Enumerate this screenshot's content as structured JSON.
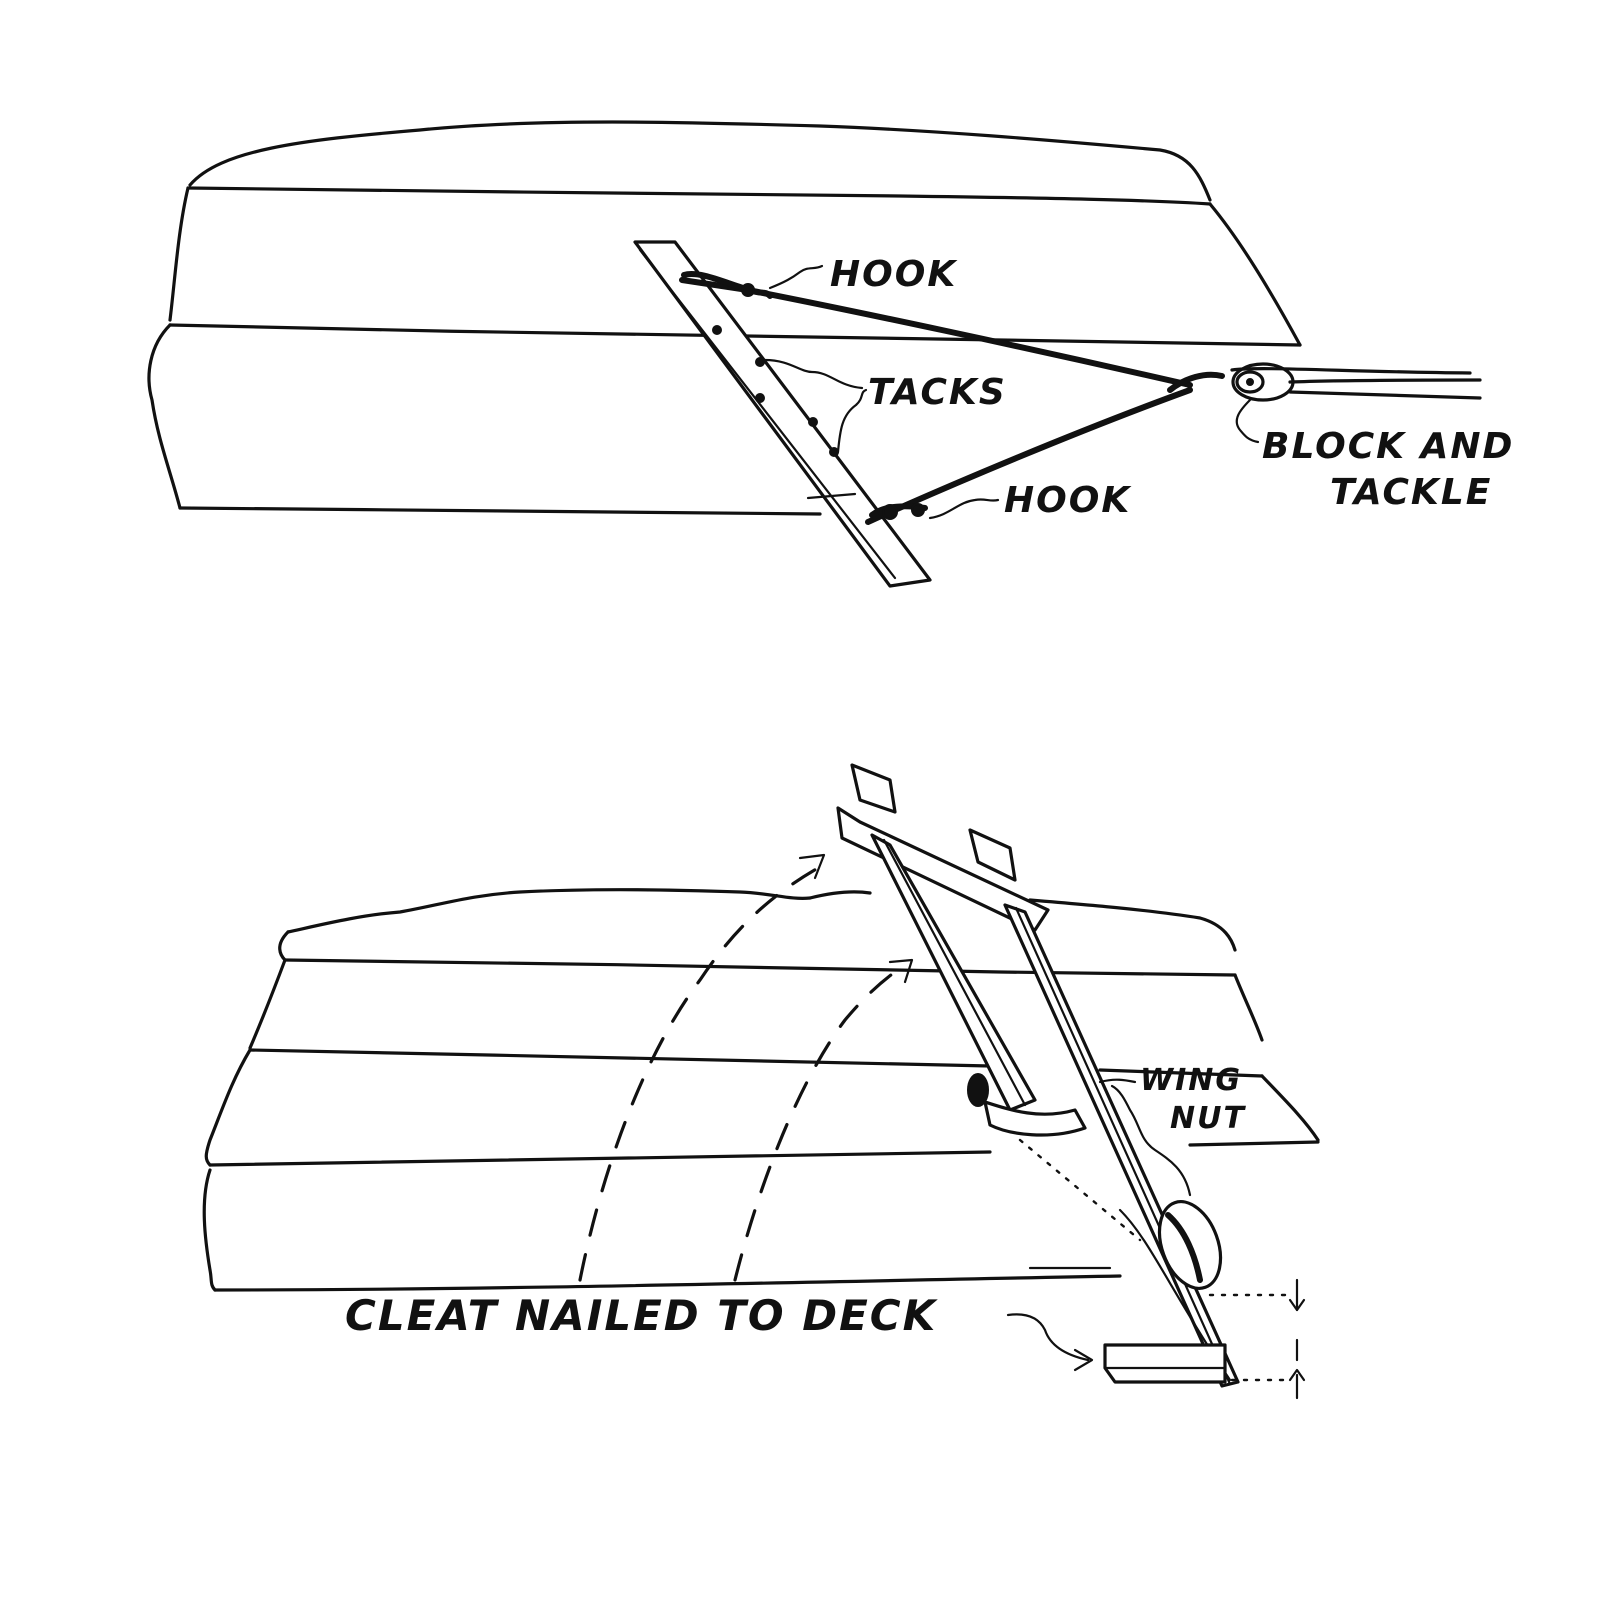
{
  "top_figure": {
    "labels": {
      "hook_upper": "HOOK",
      "tacks": "TACKS",
      "hook_lower": "HOOK",
      "block_and_tackle_line1": "BLOCK AND",
      "block_and_tackle_line2": "TACKLE"
    }
  },
  "bottom_figure": {
    "labels": {
      "wing_nut_line1": "WING",
      "wing_nut_line2": "NUT",
      "cleat": "CLEAT NAILED TO DECK"
    }
  }
}
